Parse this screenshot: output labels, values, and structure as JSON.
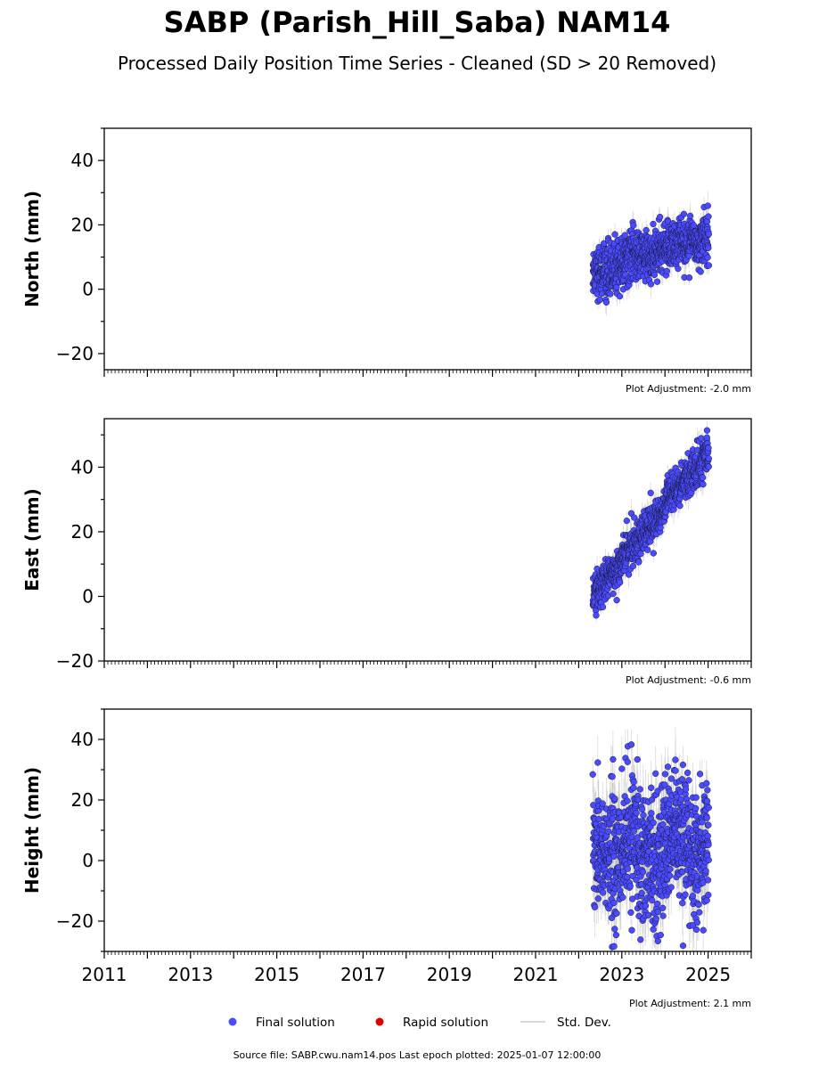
{
  "title": "SABP (Parish_Hill_Saba) NAM14",
  "subtitle": "Processed Daily Position Time Series - Cleaned (SD > 20 Removed)",
  "colors": {
    "final": "#4a4aff",
    "final_edge": "#1a1a40",
    "rapid": "#e00000",
    "stddev": "#bbbbbb"
  },
  "legend": {
    "position": "bottom-center",
    "final": "Final solution",
    "rapid": "Rapid solution",
    "stddev": "Std. Dev."
  },
  "footer": "Source file: SABP.cwu.nam14.pos  Last epoch plotted: 2025-01-07 12:00:00",
  "x_tick_labels": [
    "2011",
    "2013",
    "2015",
    "2017",
    "2019",
    "2021",
    "2023",
    "2025"
  ],
  "chart_data": [
    {
      "type": "scatter",
      "ylabel": "North (mm)",
      "adjustment": "Plot Adjustment: -2.0 mm",
      "xlim": [
        "2011-01-01",
        "2026-01-01"
      ],
      "ylim": [
        -25,
        50
      ],
      "yticks": [
        -20,
        0,
        20,
        40
      ],
      "series": [
        {
          "name": "Final solution",
          "x_start": "2022-05-01",
          "x_end": "2025-01-07",
          "trend": [
            5,
            17
          ],
          "scatter": 4,
          "stddev": 3
        }
      ]
    },
    {
      "type": "scatter",
      "ylabel": "East (mm)",
      "adjustment": "Plot Adjustment: -0.6 mm",
      "xlim": [
        "2011-01-01",
        "2026-01-01"
      ],
      "ylim": [
        -20,
        55
      ],
      "yticks": [
        -20,
        0,
        20,
        40
      ],
      "series": [
        {
          "name": "Final solution",
          "x_start": "2022-05-01",
          "x_end": "2025-01-07",
          "trend": [
            0,
            45
          ],
          "scatter": 3,
          "stddev": 3
        }
      ]
    },
    {
      "type": "scatter",
      "ylabel": "Height (mm)",
      "adjustment": "Plot Adjustment: 2.1 mm",
      "xlim": [
        "2011-01-01",
        "2026-01-01"
      ],
      "ylim": [
        -30,
        50
      ],
      "yticks": [
        -20,
        0,
        20,
        40
      ],
      "series": [
        {
          "name": "Final solution",
          "x_start": "2022-05-01",
          "x_end": "2025-01-07",
          "trend": [
            3,
            5
          ],
          "scatter": 11,
          "stddev": 8
        }
      ]
    }
  ]
}
